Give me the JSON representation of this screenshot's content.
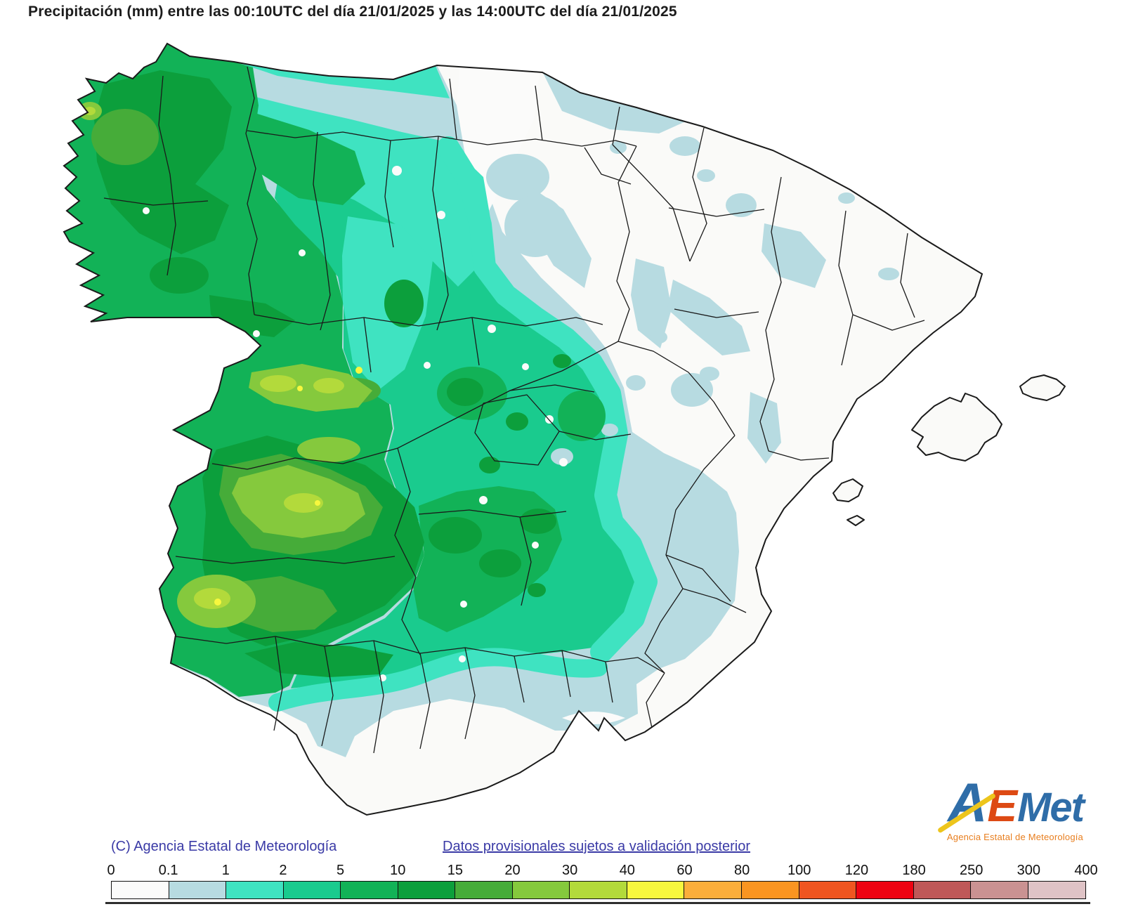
{
  "title": "Precipitación (mm) entre las 00:10UTC del día 21/01/2025 y las 14:00UTC del día 21/01/2025",
  "footer": {
    "copyright": "(C) Agencia Estatal de Meteorología",
    "provisional_link": "Datos provisionales sujetos a validación posterior"
  },
  "logo": {
    "letter_a": "A",
    "letter_e": "E",
    "letter_met": "Met",
    "subtitle": "Agencia Estatal de Meteorología",
    "blue": "#2f6da8",
    "orange_e": "#dd4a14",
    "subtitle_orange": "#e87e1e",
    "yellow": "#edc51c"
  },
  "legend": {
    "units": "mm",
    "ticks": [
      "0",
      "0.1",
      "1",
      "2",
      "5",
      "10",
      "15",
      "20",
      "30",
      "40",
      "60",
      "80",
      "100",
      "120",
      "180",
      "250",
      "300",
      "400"
    ],
    "colors": [
      "#fbfbfa",
      "#b7dbe1",
      "#3fe3c1",
      "#1acb8e",
      "#12b257",
      "#0c9f3c",
      "#46ac39",
      "#85c93d",
      "#b3da3b",
      "#f7f73e",
      "#fbae3b",
      "#fa9521",
      "#ef5520",
      "#ee0312",
      "#bf5858",
      "#ca9292",
      "#dfc3c6"
    ]
  },
  "map": {
    "region": "España peninsular e Islas Baleares",
    "variable": "Precipitación acumulada",
    "units": "mm",
    "period": "00:10UTC 21/01/2025 - 14:00UTC 21/01/2025",
    "levels_mm": [
      0,
      0.1,
      1,
      2,
      5,
      10,
      15,
      20,
      30,
      40,
      60,
      80,
      100,
      120,
      180,
      250,
      300,
      400
    ],
    "colors": {
      "land_zero": "#fafaf8",
      "sea": "#ffffff",
      "border": "#1a1a1a"
    },
    "observations": [
      {
        "area": "Galicia y noroeste",
        "precip_mm": "5-30"
      },
      {
        "area": "Extremadura y oeste del Sistema Central",
        "precip_mm": "10-40, máximos puntuales 40-60"
      },
      {
        "area": "Meseta norte y centro peninsular",
        "precip_mm": "1-10"
      },
      {
        "area": "Cornisa cantábrica",
        "precip_mm": "0.1-2"
      },
      {
        "area": "Aragón, Cataluña y Baleares",
        "precip_mm": "0-1"
      },
      {
        "area": "Levante, sureste y litoral sur",
        "precip_mm": "0-1"
      },
      {
        "area": "Andalucía occidental",
        "precip_mm": "5-40"
      },
      {
        "area": "La Mancha y Sierra Morena",
        "precip_mm": "5-20"
      }
    ]
  }
}
